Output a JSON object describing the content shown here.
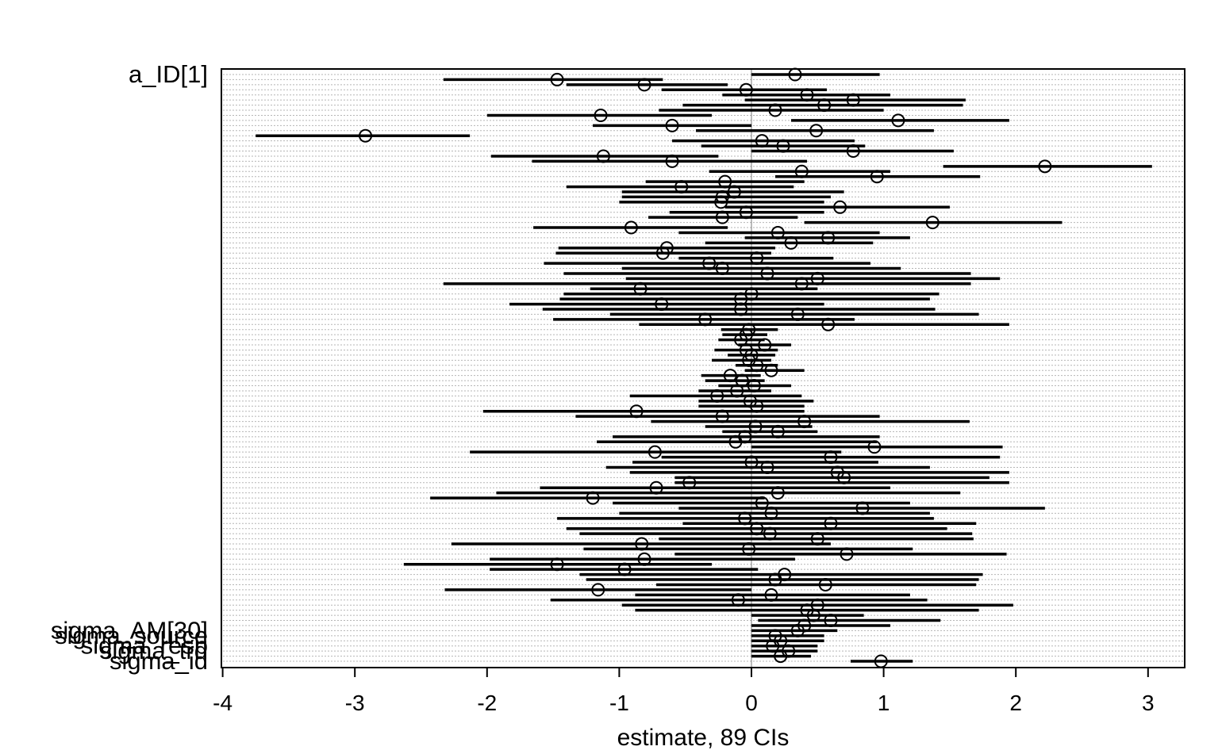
{
  "chart_data": {
    "type": "dot-interval",
    "xlabel": "estimate, 89 CIs",
    "ylabel": "",
    "xlim": [
      -4.0,
      3.3
    ],
    "xticks": [
      -4,
      -3,
      -2,
      -1,
      0,
      1,
      2,
      3
    ],
    "xtick_labels": [
      "-4",
      "-3",
      "-2",
      "-1",
      "0",
      "1",
      "2",
      "3"
    ],
    "grid": "horizontal dotted rows",
    "reference_line": 0,
    "visible_labels": [
      "a_ID[1]",
      "sigma_AM[30]",
      "sigma_source",
      "sigma_resp",
      "sigma_trd",
      "sigma_id"
    ],
    "rows": [
      {
        "est": 0.33,
        "lo": 0.0,
        "hi": 0.97
      },
      {
        "est": -1.47,
        "lo": -2.33,
        "hi": -0.67
      },
      {
        "est": -0.81,
        "lo": -1.4,
        "hi": -0.18
      },
      {
        "est": -0.04,
        "lo": -0.68,
        "hi": 0.57
      },
      {
        "est": 0.42,
        "lo": -0.22,
        "hi": 1.05
      },
      {
        "est": 0.77,
        "lo": -0.05,
        "hi": 1.62
      },
      {
        "est": 0.55,
        "lo": -0.52,
        "hi": 1.6
      },
      {
        "est": 0.18,
        "lo": -0.7,
        "hi": 1.0
      },
      {
        "est": -1.14,
        "lo": -2.0,
        "hi": -0.3
      },
      {
        "est": 1.11,
        "lo": 0.3,
        "hi": 1.95
      },
      {
        "est": -0.6,
        "lo": -1.2,
        "hi": 0.0
      },
      {
        "est": 0.49,
        "lo": -0.42,
        "hi": 1.38
      },
      {
        "est": -2.92,
        "lo": -3.75,
        "hi": -2.13
      },
      {
        "est": 0.08,
        "lo": -0.6,
        "hi": 0.78
      },
      {
        "est": 0.24,
        "lo": -0.38,
        "hi": 0.86
      },
      {
        "est": 0.77,
        "lo": 0.0,
        "hi": 1.53
      },
      {
        "est": -1.12,
        "lo": -1.97,
        "hi": -0.25
      },
      {
        "est": -0.6,
        "lo": -1.66,
        "hi": 0.42
      },
      {
        "est": 2.22,
        "lo": 1.45,
        "hi": 3.03
      },
      {
        "est": 0.38,
        "lo": -0.32,
        "hi": 1.05
      },
      {
        "est": 0.95,
        "lo": 0.18,
        "hi": 1.73
      },
      {
        "est": -0.2,
        "lo": -0.8,
        "hi": 0.4
      },
      {
        "est": -0.53,
        "lo": -1.4,
        "hi": 0.32
      },
      {
        "est": -0.13,
        "lo": -0.98,
        "hi": 0.7
      },
      {
        "est": -0.22,
        "lo": -0.98,
        "hi": 0.6
      },
      {
        "est": -0.23,
        "lo": -1.0,
        "hi": 0.55
      },
      {
        "est": 0.67,
        "lo": -0.2,
        "hi": 1.5
      },
      {
        "est": -0.04,
        "lo": -0.62,
        "hi": 0.55
      },
      {
        "est": -0.22,
        "lo": -0.78,
        "hi": 0.35
      },
      {
        "est": 1.37,
        "lo": 0.4,
        "hi": 2.35
      },
      {
        "est": -0.91,
        "lo": -1.65,
        "hi": -0.18
      },
      {
        "est": 0.2,
        "lo": -0.55,
        "hi": 0.97
      },
      {
        "est": 0.58,
        "lo": -0.05,
        "hi": 1.2
      },
      {
        "est": 0.3,
        "lo": -0.35,
        "hi": 0.92
      },
      {
        "est": -0.64,
        "lo": -1.46,
        "hi": 0.18
      },
      {
        "est": -0.67,
        "lo": -1.48,
        "hi": 0.15
      },
      {
        "est": 0.04,
        "lo": -0.55,
        "hi": 0.62
      },
      {
        "est": -0.32,
        "lo": -1.57,
        "hi": 0.9
      },
      {
        "est": -0.22,
        "lo": -0.98,
        "hi": 1.13
      },
      {
        "est": 0.12,
        "lo": -1.42,
        "hi": 1.66
      },
      {
        "est": 0.5,
        "lo": -0.95,
        "hi": 1.88
      },
      {
        "est": 0.38,
        "lo": -2.33,
        "hi": 1.66
      },
      {
        "est": -0.84,
        "lo": -1.22,
        "hi": 0.5
      },
      {
        "est": 0.0,
        "lo": -1.42,
        "hi": 1.42
      },
      {
        "est": -0.08,
        "lo": -1.45,
        "hi": 1.35
      },
      {
        "est": -0.68,
        "lo": -1.83,
        "hi": 0.55
      },
      {
        "est": -0.08,
        "lo": -1.58,
        "hi": 1.39
      },
      {
        "est": 0.35,
        "lo": -1.07,
        "hi": 1.72
      },
      {
        "est": -0.35,
        "lo": -1.5,
        "hi": 0.78
      },
      {
        "est": 0.58,
        "lo": -0.85,
        "hi": 1.95
      },
      {
        "est": -0.02,
        "lo": -0.23,
        "hi": 0.2
      },
      {
        "est": -0.04,
        "lo": -0.22,
        "hi": 0.12
      },
      {
        "est": -0.08,
        "lo": -0.25,
        "hi": 0.1
      },
      {
        "est": 0.1,
        "lo": -0.1,
        "hi": 0.3
      },
      {
        "est": -0.04,
        "lo": -0.28,
        "hi": 0.2
      },
      {
        "est": 0.0,
        "lo": -0.18,
        "hi": 0.18
      },
      {
        "est": -0.02,
        "lo": -0.3,
        "hi": 0.15
      },
      {
        "est": 0.04,
        "lo": -0.12,
        "hi": 0.2
      },
      {
        "est": 0.15,
        "lo": -0.05,
        "hi": 0.4
      },
      {
        "est": -0.16,
        "lo": -0.38,
        "hi": 0.07
      },
      {
        "est": -0.07,
        "lo": -0.35,
        "hi": 0.1
      },
      {
        "est": 0.02,
        "lo": -0.25,
        "hi": 0.3
      },
      {
        "est": -0.11,
        "lo": -0.4,
        "hi": 0.15
      },
      {
        "est": -0.26,
        "lo": -0.92,
        "hi": 0.38
      },
      {
        "est": -0.01,
        "lo": -0.4,
        "hi": 0.47
      },
      {
        "est": 0.04,
        "lo": -0.4,
        "hi": 0.4
      },
      {
        "est": -0.87,
        "lo": -2.03,
        "hi": 0.4
      },
      {
        "est": -0.22,
        "lo": -1.33,
        "hi": 0.97
      },
      {
        "est": 0.4,
        "lo": -0.76,
        "hi": 1.65
      },
      {
        "est": 0.03,
        "lo": -0.35,
        "hi": 0.46
      },
      {
        "est": 0.2,
        "lo": -0.22,
        "hi": 0.5
      },
      {
        "est": -0.05,
        "lo": -1.05,
        "hi": 0.97
      },
      {
        "est": -0.12,
        "lo": -1.17,
        "hi": 0.95
      },
      {
        "est": 0.93,
        "lo": 0.0,
        "hi": 1.9
      },
      {
        "est": -0.73,
        "lo": -2.13,
        "hi": 0.68
      },
      {
        "est": 0.6,
        "lo": -0.68,
        "hi": 1.88
      },
      {
        "est": 0.0,
        "lo": -0.9,
        "hi": 0.96
      },
      {
        "est": 0.12,
        "lo": -1.1,
        "hi": 1.35
      },
      {
        "est": 0.65,
        "lo": -0.92,
        "hi": 1.95
      },
      {
        "est": 0.7,
        "lo": -0.58,
        "hi": 1.8
      },
      {
        "est": -0.47,
        "lo": -0.58,
        "hi": 1.95
      },
      {
        "est": -0.72,
        "lo": -1.6,
        "hi": 1.05
      },
      {
        "est": 0.2,
        "lo": -1.93,
        "hi": 1.58
      },
      {
        "est": -1.2,
        "lo": -2.43,
        "hi": 0.1
      },
      {
        "est": 0.08,
        "lo": -1.05,
        "hi": 1.2
      },
      {
        "est": 0.84,
        "lo": -0.55,
        "hi": 2.22
      },
      {
        "est": 0.15,
        "lo": -1.0,
        "hi": 1.35
      },
      {
        "est": -0.05,
        "lo": -1.47,
        "hi": 1.38
      },
      {
        "est": 0.6,
        "lo": -0.52,
        "hi": 1.7
      },
      {
        "est": 0.04,
        "lo": -1.4,
        "hi": 1.48
      },
      {
        "est": 0.14,
        "lo": -1.3,
        "hi": 1.67
      },
      {
        "est": 0.5,
        "lo": -0.7,
        "hi": 1.68
      },
      {
        "est": -0.83,
        "lo": -2.27,
        "hi": 0.6
      },
      {
        "est": -0.02,
        "lo": -1.27,
        "hi": 1.22
      },
      {
        "est": 0.72,
        "lo": -0.58,
        "hi": 1.93
      },
      {
        "est": -0.81,
        "lo": -1.98,
        "hi": 0.33
      },
      {
        "est": -1.47,
        "lo": -2.63,
        "hi": -0.3
      },
      {
        "est": -0.96,
        "lo": -1.98,
        "hi": 0.05
      },
      {
        "est": 0.25,
        "lo": -1.3,
        "hi": 1.75
      },
      {
        "est": 0.18,
        "lo": -1.25,
        "hi": 1.72
      },
      {
        "est": 0.56,
        "lo": -0.72,
        "hi": 1.7
      },
      {
        "est": -1.16,
        "lo": -2.32,
        "hi": 0.0
      },
      {
        "est": 0.15,
        "lo": -0.88,
        "hi": 1.2
      },
      {
        "est": -0.1,
        "lo": -1.52,
        "hi": 1.33
      },
      {
        "est": 0.5,
        "lo": -0.98,
        "hi": 1.98
      },
      {
        "est": 0.42,
        "lo": -0.88,
        "hi": 1.72
      },
      {
        "est": 0.47,
        "lo": 0.0,
        "hi": 0.85
      },
      {
        "est": 0.6,
        "lo": 0.05,
        "hi": 1.43
      },
      {
        "est": 0.4,
        "lo": 0.0,
        "hi": 1.05
      },
      {
        "est": 0.35,
        "lo": 0.0,
        "hi": 0.65
      },
      {
        "est": 0.18,
        "lo": 0.0,
        "hi": 0.55
      },
      {
        "est": 0.22,
        "lo": 0.0,
        "hi": 0.55
      },
      {
        "est": 0.16,
        "lo": 0.0,
        "hi": 0.5
      },
      {
        "est": 0.28,
        "lo": 0.0,
        "hi": 0.5
      },
      {
        "est": 0.22,
        "lo": 0.0,
        "hi": 0.45
      },
      {
        "est": 0.98,
        "lo": 0.75,
        "hi": 1.22
      }
    ]
  }
}
